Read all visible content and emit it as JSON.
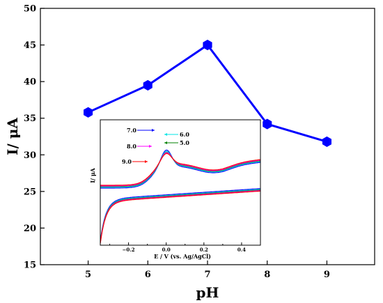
{
  "chart_data": [
    {
      "type": "line",
      "xlabel": "pH",
      "ylabel": "I/ μA",
      "xlim": [
        4.2,
        9.8
      ],
      "ylim": [
        15,
        50
      ],
      "xticks": [
        5,
        6,
        7,
        8,
        9
      ],
      "yticks": [
        15,
        20,
        25,
        30,
        35,
        40,
        45,
        50
      ],
      "series": [
        {
          "color": "#0000ff",
          "marker": "hexagon",
          "x": [
            5,
            6,
            7,
            8,
            9
          ],
          "y": [
            35.8,
            39.5,
            45.0,
            34.2,
            31.8
          ]
        }
      ]
    },
    {
      "type": "line",
      "xlabel": "E / V (vs. Ag/AgCl)",
      "ylabel": "I/ μA",
      "xlim": [
        -0.35,
        0.5
      ],
      "xticks": [
        -0.2,
        0.0,
        0.2,
        0.4
      ],
      "xtick_labels": [
        "−0.2",
        "0.0",
        "0.2",
        "0.4"
      ],
      "series": [
        {
          "label": "7.0",
          "color": "#0000ff",
          "peak_potential": 0.0
        },
        {
          "label": "6.0",
          "color": "#00e5e5",
          "peak_potential": 0.0
        },
        {
          "label": "5.0",
          "color": "#008000",
          "peak_potential": 0.0
        },
        {
          "label": "8.0",
          "color": "#ff00ff",
          "peak_potential": 0.0
        },
        {
          "label": "9.0",
          "color": "#ff0000",
          "peak_potential": 0.0
        }
      ]
    }
  ]
}
